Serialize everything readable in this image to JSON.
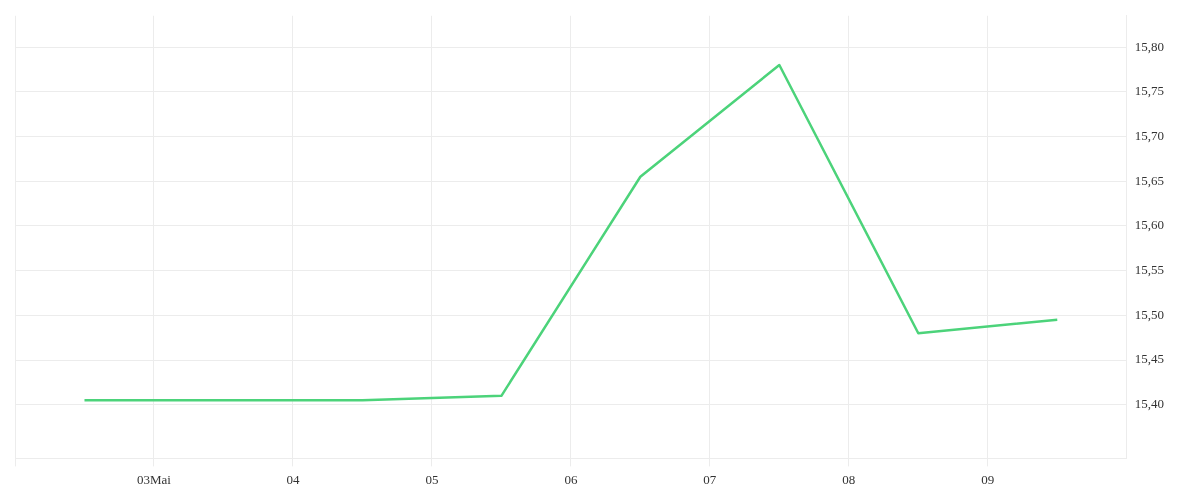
{
  "chart_data": {
    "type": "line",
    "x": [
      "--05-02T12:00",
      "--05-04T12:00",
      "--05-05T12:00",
      "--05-06T12:00",
      "--05-07T12:00",
      "--05-08T12:00",
      "--05-09T12:00"
    ],
    "values": [
      15.405,
      15.405,
      15.41,
      15.655,
      15.78,
      15.48,
      15.495
    ],
    "color": "#4cd37a",
    "xlim": [
      "--05-02",
      "--05-10"
    ],
    "xticks": [
      {
        "value": "--05-03",
        "label": "03Mai"
      },
      {
        "value": "--05-04",
        "label": "04"
      },
      {
        "value": "--05-05",
        "label": "05"
      },
      {
        "value": "--05-06",
        "label": "06"
      },
      {
        "value": "--05-07",
        "label": "07"
      },
      {
        "value": "--05-08",
        "label": "08"
      },
      {
        "value": "--05-09",
        "label": "09"
      }
    ],
    "ylim": [
      15.34,
      15.835
    ],
    "yticks": [
      {
        "value": 15.4,
        "label": "15,40"
      },
      {
        "value": 15.45,
        "label": "15,45"
      },
      {
        "value": 15.5,
        "label": "15,50"
      },
      {
        "value": 15.55,
        "label": "15,55"
      },
      {
        "value": 15.6,
        "label": "15,60"
      },
      {
        "value": 15.65,
        "label": "15,65"
      },
      {
        "value": 15.7,
        "label": "15,70"
      },
      {
        "value": 15.75,
        "label": "15,75"
      },
      {
        "value": 15.8,
        "label": "15,80"
      }
    ],
    "grid": true,
    "legend": false,
    "marker": "none",
    "line_style": "solid"
  }
}
